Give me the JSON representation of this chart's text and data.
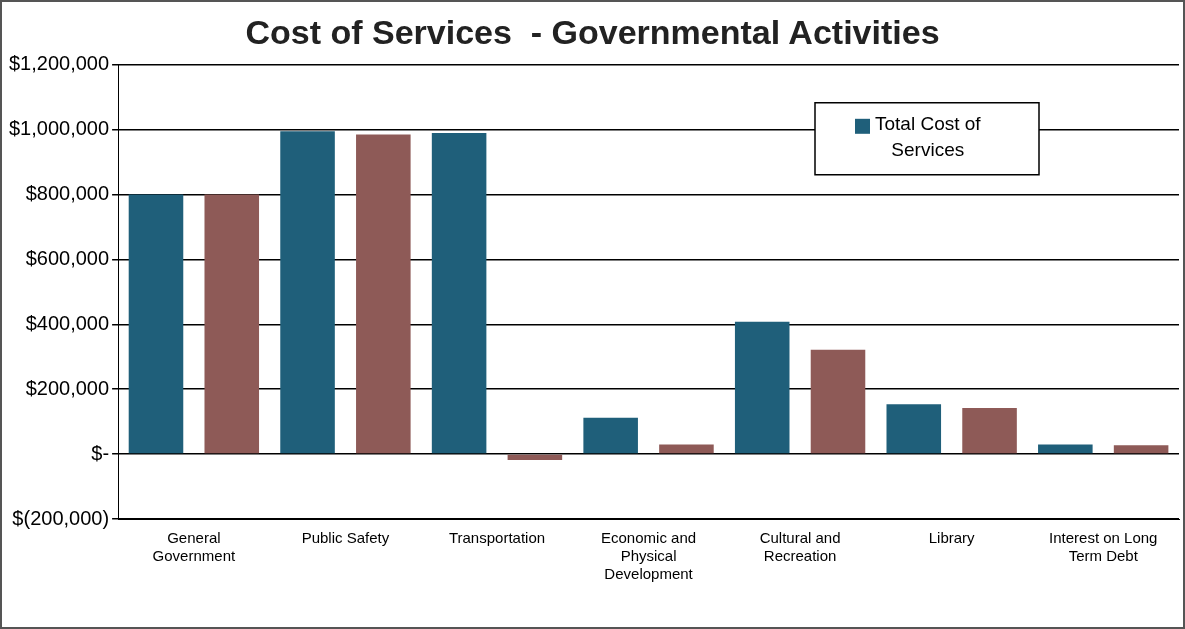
{
  "chart_data": {
    "type": "bar",
    "title": "Cost of Services  - Governmental Activities",
    "categories": [
      "General Government",
      "Public Safety",
      "Transportation",
      "Economic and Physical Development",
      "Cultural and Recreation",
      "Library",
      "Interest on Long Term Debt"
    ],
    "series": [
      {
        "name": "Total Cost of Services",
        "color": "#1f5f7a",
        "values": [
          800000,
          995000,
          990000,
          112000,
          408000,
          154000,
          30000
        ]
      },
      {
        "color": "#8e5a57",
        "values": [
          800000,
          985000,
          -18000,
          30000,
          322000,
          142000,
          27000
        ]
      }
    ],
    "ylim": [
      -200000,
      1200000
    ],
    "yticks": [
      {
        "value": -200000,
        "label": "$(200,000)"
      },
      {
        "value": 0,
        "label": "$-"
      },
      {
        "value": 200000,
        "label": "$200,000"
      },
      {
        "value": 400000,
        "label": "$400,000"
      },
      {
        "value": 600000,
        "label": "$600,000"
      },
      {
        "value": 800000,
        "label": "$800,000"
      },
      {
        "value": 1000000,
        "label": "$1,000,000"
      },
      {
        "value": 1200000,
        "label": "$1,200,000"
      }
    ],
    "grid": "y",
    "legend": "top right"
  }
}
